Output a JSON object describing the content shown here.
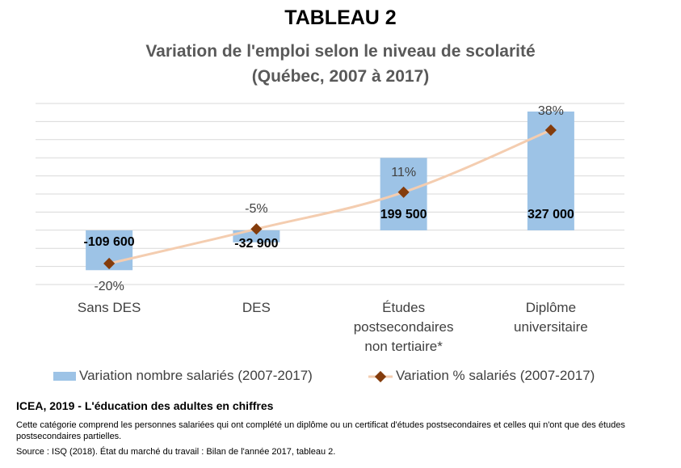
{
  "header": {
    "table_number": "TABLEAU 2",
    "title_line1": "Variation de l'emploi selon le niveau de scolarité",
    "title_line2": "(Québec, 2007 à 2017)"
  },
  "chart_data": {
    "type": "bar",
    "categories": [
      [
        "Sans DES"
      ],
      [
        "DES"
      ],
      [
        "Études",
        "postsecondaires",
        "non tertiaire*"
      ],
      [
        "Diplôme",
        "universitaire"
      ]
    ],
    "series": [
      {
        "name": "Variation nombre salariés (2007-2017)",
        "type": "bar",
        "axis": "primary",
        "color": "#9dc3e6",
        "values": [
          -109600,
          -32900,
          199500,
          327000
        ],
        "labels": [
          "-109 600",
          "-32 900",
          "199 500",
          "327 000"
        ]
      },
      {
        "name": "Variation % salariés (2007-2017)",
        "type": "line",
        "axis": "secondary",
        "line_color": "#f4cdb0",
        "marker_color": "#843c0c",
        "values": [
          -20,
          -5,
          11,
          38
        ],
        "labels": [
          "-20%",
          "-5%",
          "11%",
          "38%"
        ]
      }
    ],
    "ylim": [
      -150000,
      350000
    ],
    "y2lim": [
      -35,
      50
    ],
    "grid": true,
    "legend_position": "bottom"
  },
  "footer": {
    "source_title": "ICEA, 2019 - L'éducation des adultes en chiffres",
    "note": "Cette catégorie comprend les personnes salariées qui ont complété un diplôme ou un certificat d'études postsecondaires et celles qui n'ont que des études postsecondaires partielles.",
    "source": "Source : ISQ (2018). État du marché du travail : Bilan de l'année 2017, tableau 2."
  }
}
